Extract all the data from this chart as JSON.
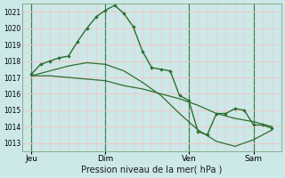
{
  "xlabel": "Pression niveau de la mer( hPa )",
  "bg_color": "#cce8e8",
  "plot_bg_color": "#cce8e8",
  "grid_color_major": "#f0c8c8",
  "grid_color_minor": "#e8d8d8",
  "line_color": "#2d6e2d",
  "vline_color": "#4a7a4a",
  "ylim": [
    1012.5,
    1021.5
  ],
  "yticks": [
    1013,
    1014,
    1015,
    1016,
    1017,
    1018,
    1019,
    1020,
    1021
  ],
  "xlim": [
    0,
    14.0
  ],
  "day_labels": [
    "Jeu",
    "Dim",
    "Ven",
    "Sam"
  ],
  "day_positions": [
    0.5,
    4.5,
    9.0,
    12.5
  ],
  "vline_positions": [
    0.5,
    4.5,
    9.0,
    12.5
  ],
  "series1_x": [
    0.5,
    1.0,
    1.5,
    2.0,
    2.5,
    3.0,
    3.5,
    4.0,
    4.5,
    5.0,
    5.5,
    6.0,
    6.5,
    7.0,
    7.5,
    8.0,
    8.5,
    9.0,
    9.5,
    10.0,
    10.5,
    11.0,
    11.5,
    12.0,
    12.5,
    13.0,
    13.5
  ],
  "series1_y": [
    1017.2,
    1017.8,
    1018.0,
    1018.2,
    1018.3,
    1019.2,
    1020.0,
    1020.7,
    1021.1,
    1021.4,
    1020.9,
    1020.1,
    1018.6,
    1017.6,
    1017.5,
    1017.4,
    1015.9,
    1015.6,
    1013.7,
    1013.5,
    1014.8,
    1014.8,
    1015.1,
    1015.0,
    1014.1,
    1014.1,
    1013.9
  ],
  "series2_x": [
    0.5,
    1.5,
    2.5,
    3.5,
    4.5,
    5.5,
    6.5,
    7.5,
    8.5,
    9.5,
    10.5,
    11.5,
    12.5,
    13.5
  ],
  "series2_y": [
    1017.1,
    1017.1,
    1017.0,
    1016.9,
    1016.8,
    1016.5,
    1016.3,
    1016.0,
    1015.7,
    1015.3,
    1014.8,
    1014.5,
    1014.3,
    1014.0
  ],
  "series3_x": [
    0.5,
    1.5,
    2.5,
    3.5,
    4.5,
    5.5,
    6.5,
    7.5,
    8.5,
    9.5,
    10.5,
    11.5,
    12.5,
    13.5
  ],
  "series3_y": [
    1017.1,
    1017.4,
    1017.7,
    1017.9,
    1017.8,
    1017.4,
    1016.7,
    1015.9,
    1014.8,
    1013.8,
    1013.1,
    1012.8,
    1013.2,
    1013.8
  ],
  "ytick_fontsize": 5.5,
  "xtick_fontsize": 6.5,
  "xlabel_fontsize": 7
}
